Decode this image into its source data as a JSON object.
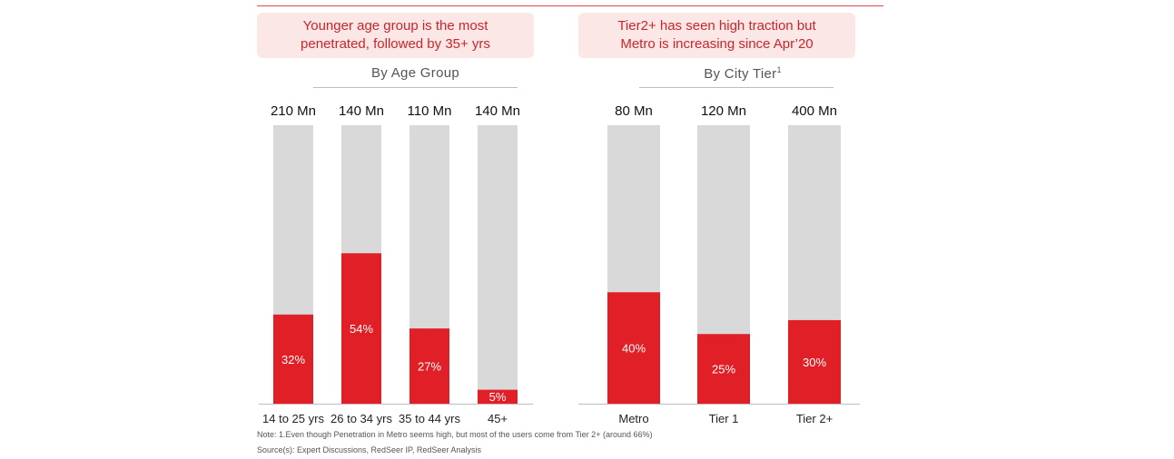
{
  "callouts": {
    "left": [
      "Younger age group is the most",
      "penetrated, followed by 35+ yrs"
    ],
    "right": [
      "Tier2+ has seen high traction but",
      "Metro is increasing since Apr’20"
    ]
  },
  "sections": {
    "left_title": "By Age Group",
    "right_title": "By City Tier",
    "right_title_sup": "1"
  },
  "colors": {
    "fill": "#e11f26",
    "track": "#d9d9d9",
    "callout_bg": "#fbe7e6",
    "callout_text": "#c9262c"
  },
  "chart_data": [
    {
      "type": "bar",
      "categories": [
        "14 to 25 yrs",
        "26 to 34 yrs",
        "35 to 44 yrs",
        "45+"
      ],
      "totals": [
        "210 Mn",
        "140 Mn",
        "110 Mn",
        "140 Mn"
      ],
      "values": [
        32,
        54,
        27,
        5
      ],
      "value_labels": [
        "32%",
        "54%",
        "27%",
        "5%"
      ],
      "ylim": [
        0,
        100
      ],
      "stacked_background": 100
    },
    {
      "type": "bar",
      "categories": [
        "Metro",
        "Tier 1",
        "Tier 2+"
      ],
      "totals": [
        "80 Mn",
        "120 Mn",
        "400 Mn"
      ],
      "values": [
        40,
        25,
        30
      ],
      "value_labels": [
        "40%",
        "25%",
        "30%"
      ],
      "ylim": [
        0,
        100
      ],
      "stacked_background": 100
    }
  ],
  "footer": {
    "note": "Note: 1.Even though Penetration in Metro seems high, but most of the users come from Tier 2+ (around 66%)",
    "source": "Source(s): Expert Discussions, RedSeer IP, RedSeer Analysis"
  }
}
